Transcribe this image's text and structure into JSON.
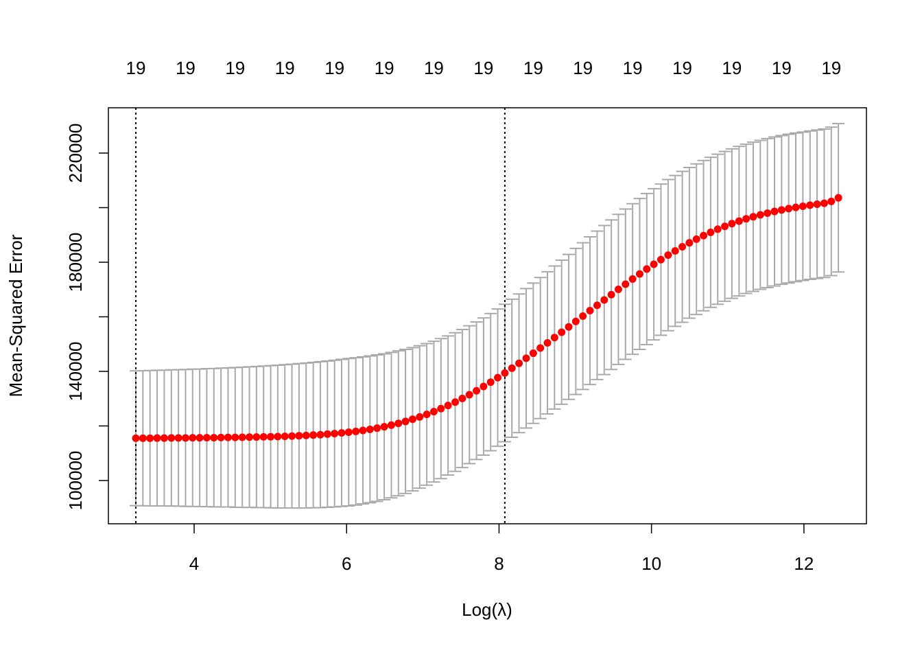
{
  "chart_data": {
    "type": "errorbar",
    "xlabel": "Log(λ)",
    "ylabel": "Mean-Squared Error",
    "xlim": [
      2.875,
      12.82
    ],
    "ylim": [
      84150,
      236600
    ],
    "xticks": [
      4,
      6,
      8,
      10,
      12
    ],
    "yticks": [
      100000,
      140000,
      180000,
      220000
    ],
    "yticks_unlabeled": [
      120000,
      160000,
      200000
    ],
    "top_ticks": [
      {
        "value": 3.235,
        "label": "19"
      },
      {
        "value": 3.887,
        "label": "19"
      },
      {
        "value": 4.538,
        "label": "19"
      },
      {
        "value": 5.19,
        "label": "19"
      },
      {
        "value": 5.842,
        "label": "19"
      },
      {
        "value": 6.494,
        "label": "19"
      },
      {
        "value": 7.145,
        "label": "19"
      },
      {
        "value": 7.797,
        "label": "19"
      },
      {
        "value": 8.449,
        "label": "19"
      },
      {
        "value": 9.1,
        "label": "19"
      },
      {
        "value": 9.752,
        "label": "19"
      },
      {
        "value": 10.404,
        "label": "19"
      },
      {
        "value": 11.055,
        "label": "19"
      },
      {
        "value": 11.707,
        "label": "19"
      },
      {
        "value": 12.359,
        "label": "19"
      }
    ],
    "vlines": [
      3.235,
      8.076
    ],
    "color": "#ff0000",
    "error_color": "#a9a9a9",
    "x": [
      3.235,
      3.328,
      3.421,
      3.514,
      3.607,
      3.701,
      3.794,
      3.887,
      3.98,
      4.073,
      4.166,
      4.259,
      4.352,
      4.445,
      4.538,
      4.632,
      4.725,
      4.818,
      4.911,
      5.004,
      5.097,
      5.19,
      5.283,
      5.376,
      5.469,
      5.563,
      5.656,
      5.749,
      5.842,
      5.935,
      6.028,
      6.121,
      6.214,
      6.307,
      6.4,
      6.494,
      6.587,
      6.68,
      6.773,
      6.866,
      6.959,
      7.052,
      7.145,
      7.238,
      7.331,
      7.425,
      7.518,
      7.611,
      7.704,
      7.797,
      7.89,
      7.983,
      8.076,
      8.169,
      8.262,
      8.356,
      8.449,
      8.542,
      8.635,
      8.728,
      8.821,
      8.914,
      9.007,
      9.1,
      9.193,
      9.287,
      9.38,
      9.473,
      9.566,
      9.659,
      9.752,
      9.845,
      9.938,
      10.031,
      10.124,
      10.218,
      10.311,
      10.404,
      10.497,
      10.59,
      10.683,
      10.776,
      10.869,
      10.962,
      11.055,
      11.149,
      11.242,
      11.335,
      11.428,
      11.521,
      11.614,
      11.707,
      11.8,
      11.893,
      11.986,
      12.08,
      12.173,
      12.266,
      12.359,
      12.452
    ],
    "values": [
      115500,
      115500,
      115500,
      115550,
      115550,
      115600,
      115600,
      115600,
      115650,
      115650,
      115700,
      115700,
      115750,
      115800,
      115800,
      115850,
      115900,
      115950,
      116000,
      116050,
      116100,
      116200,
      116300,
      116400,
      116500,
      116650,
      116800,
      117000,
      117200,
      117450,
      117700,
      118000,
      118350,
      118750,
      119200,
      119700,
      120300,
      120950,
      121650,
      122450,
      123300,
      124250,
      125250,
      126350,
      127500,
      128750,
      130050,
      131450,
      132900,
      134450,
      136050,
      137700,
      139400,
      141150,
      142950,
      144800,
      146650,
      148550,
      150450,
      152400,
      154350,
      156300,
      158300,
      160250,
      162250,
      164200,
      166150,
      168100,
      170050,
      171950,
      173850,
      175700,
      177500,
      179250,
      180950,
      182600,
      184150,
      185650,
      187100,
      188450,
      189750,
      190950,
      192100,
      193150,
      194150,
      195050,
      195900,
      196650,
      197350,
      198000,
      198600,
      199150,
      199650,
      200100,
      200500,
      200900,
      201250,
      201600,
      202300,
      203600
    ],
    "errors": [
      24700,
      24750,
      24800,
      24850,
      24900,
      24950,
      25000,
      25100,
      25150,
      25200,
      25300,
      25350,
      25450,
      25500,
      25600,
      25700,
      25750,
      25850,
      25950,
      26050,
      26150,
      26250,
      26350,
      26450,
      26550,
      26650,
      26750,
      26800,
      26900,
      26950,
      27000,
      27000,
      26950,
      26900,
      26850,
      26750,
      26650,
      26550,
      26400,
      26250,
      26100,
      25950,
      25800,
      25650,
      25500,
      25400,
      25300,
      25250,
      25200,
      25150,
      25150,
      25150,
      25200,
      25300,
      25400,
      25550,
      25700,
      25850,
      26050,
      26200,
      26400,
      26550,
      26750,
      26900,
      27050,
      27200,
      27300,
      27400,
      27500,
      27550,
      27600,
      27650,
      27700,
      27700,
      27700,
      27700,
      27650,
      27650,
      27600,
      27600,
      27550,
      27500,
      27500,
      27450,
      27400,
      27400,
      27350,
      27350,
      27300,
      27300,
      27300,
      27250,
      27250,
      27250,
      27200,
      27200,
      27200,
      27200,
      27200,
      27200
    ]
  }
}
